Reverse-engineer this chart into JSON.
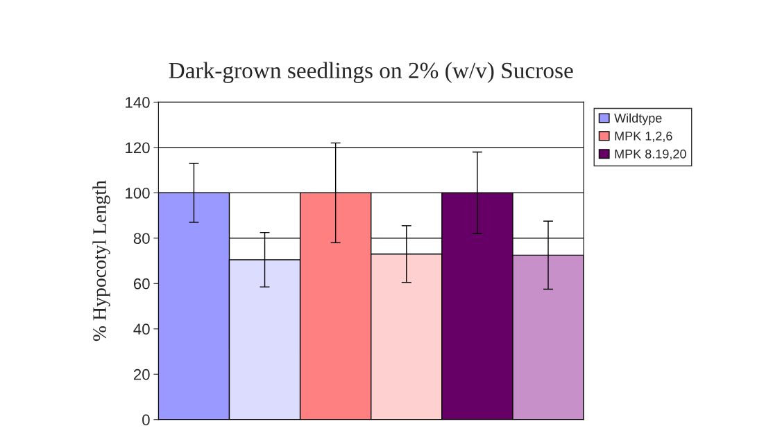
{
  "chart_data": {
    "type": "bar",
    "title": "Dark-grown seedlings on 2% (w/v) Sucrose",
    "ylabel": "% Hypocotyl Length",
    "categories": [
      null,
      null,
      null,
      null,
      null,
      null
    ],
    "series": [
      {
        "name": "Wildtype",
        "color": "#9999ff",
        "colors": [
          "#9999ff",
          "#dcdcff",
          null,
          null,
          null,
          null
        ],
        "values": [
          100,
          70.5,
          null,
          null,
          null,
          null
        ],
        "errors": [
          13,
          12,
          null,
          null,
          null,
          null
        ]
      },
      {
        "name": "MPK 1,2,6",
        "color": "#ff8080",
        "colors": [
          null,
          null,
          "#ff8080",
          "#ffd0d0",
          null,
          null
        ],
        "values": [
          null,
          null,
          100,
          73,
          null,
          null
        ],
        "errors": [
          null,
          null,
          22,
          12.5,
          null,
          null
        ]
      },
      {
        "name": "MPK 8.19,20",
        "color": "#660066",
        "colors": [
          null,
          null,
          null,
          null,
          "#660066",
          "#c890c8"
        ],
        "values": [
          null,
          null,
          null,
          null,
          100,
          72.5
        ],
        "errors": [
          null,
          null,
          null,
          null,
          18,
          15
        ]
      }
    ],
    "ylim": [
      0,
      140
    ],
    "yticks": [
      0,
      20,
      40,
      60,
      80,
      100,
      120,
      140
    ],
    "grid": "y",
    "legend": "top right"
  }
}
